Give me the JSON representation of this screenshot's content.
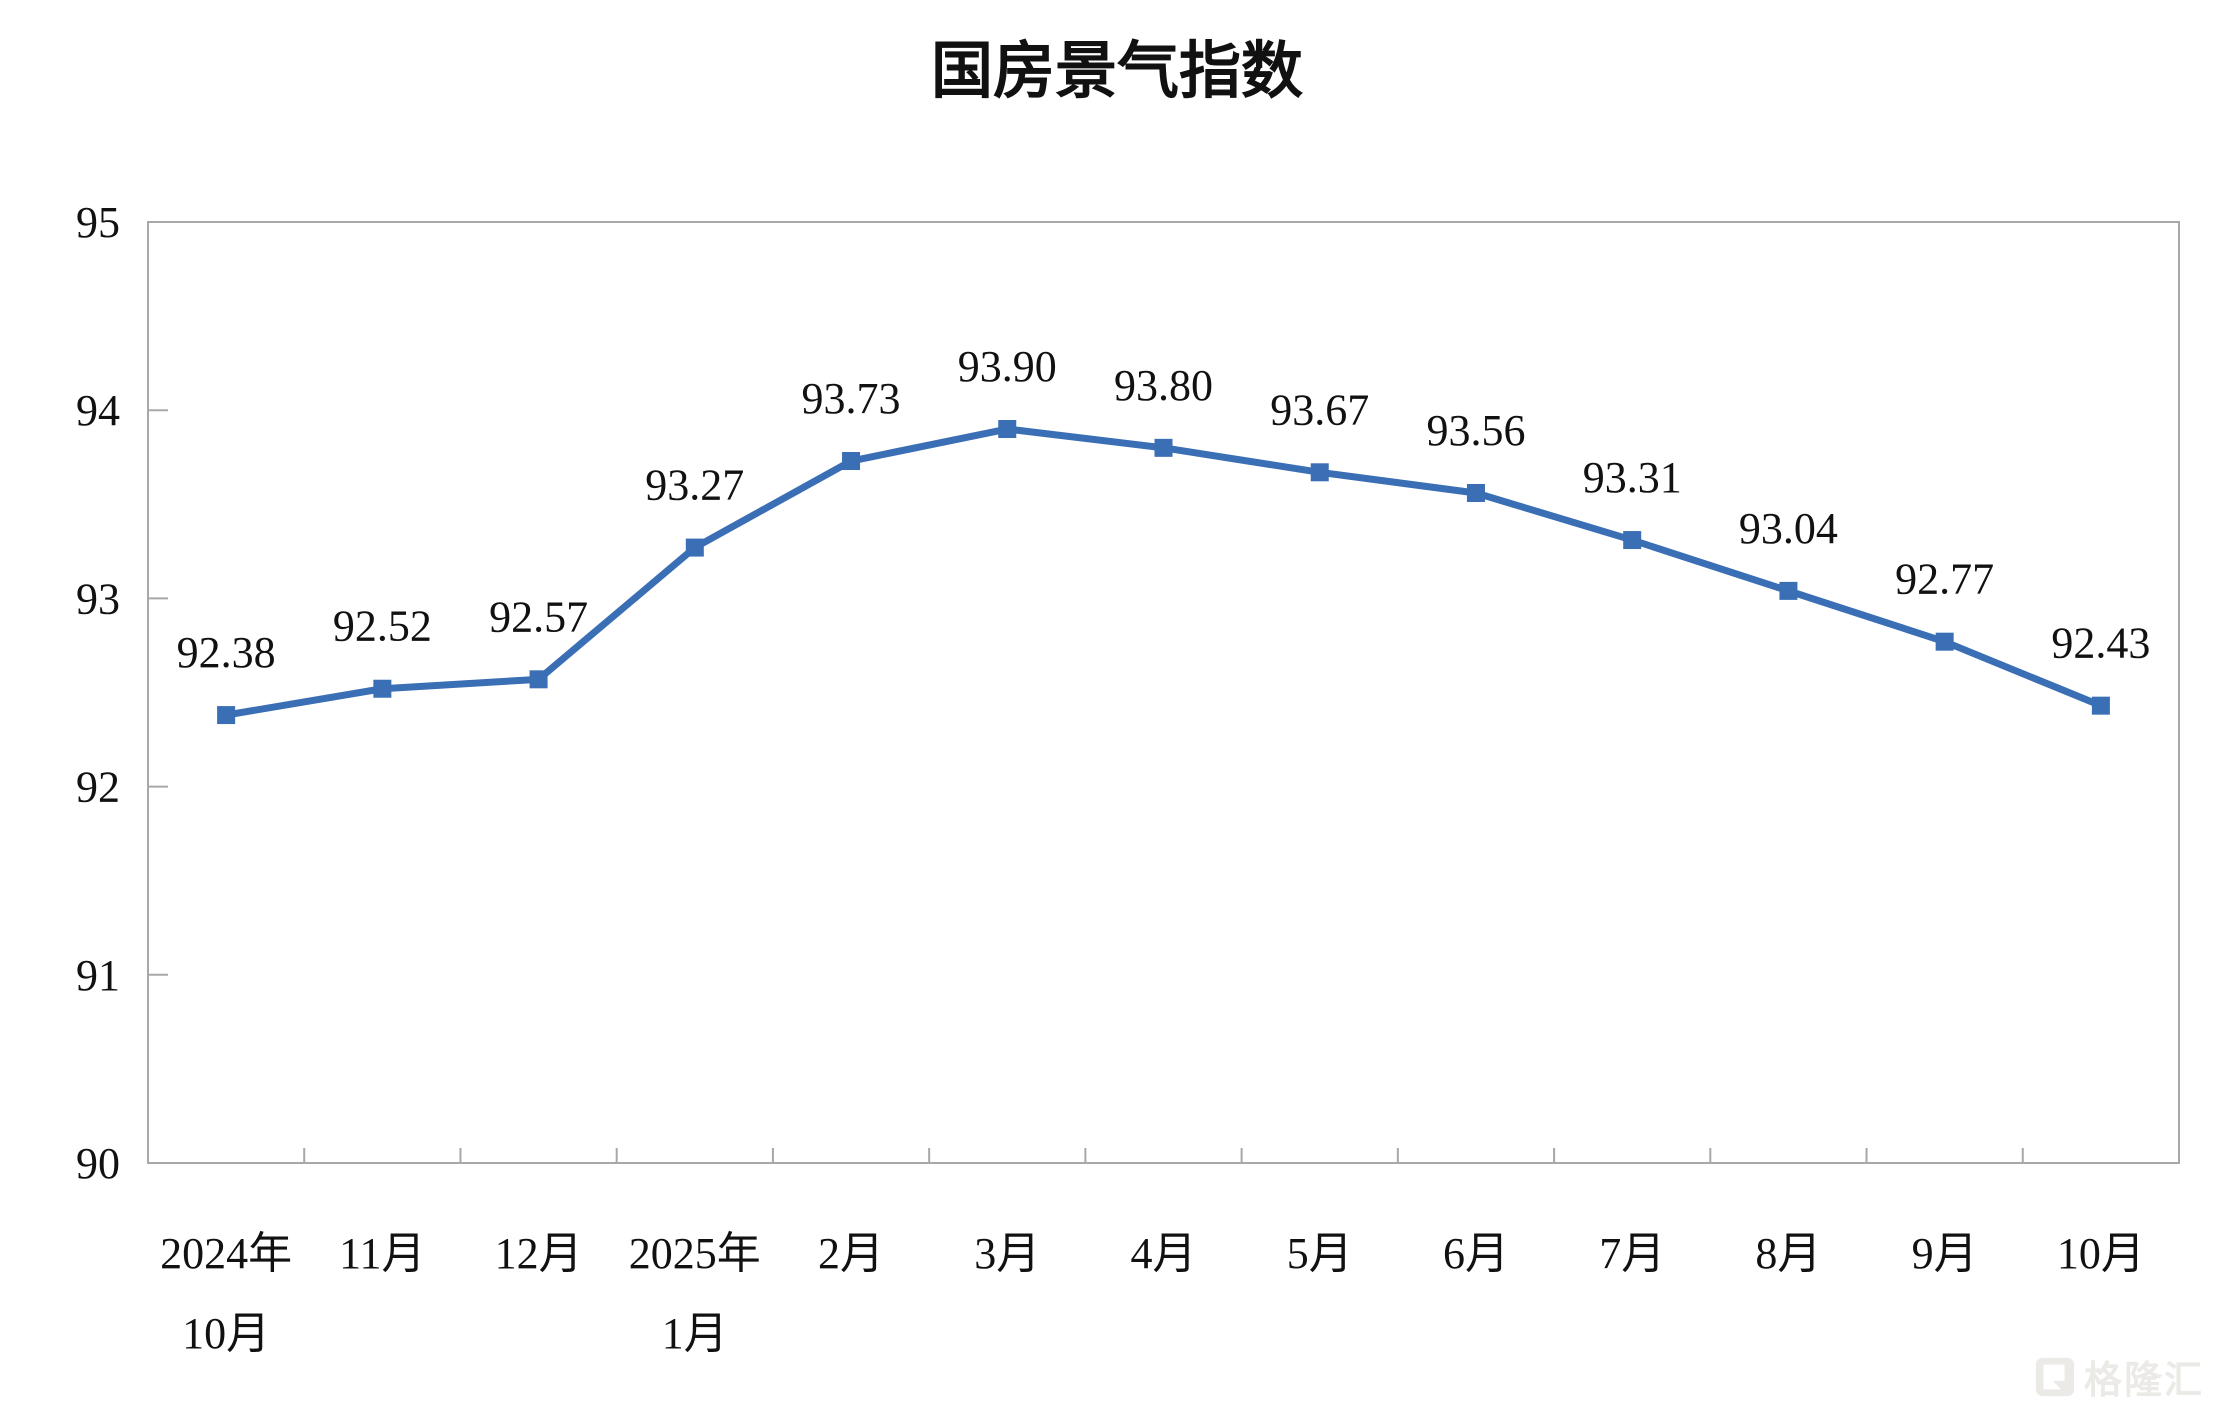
{
  "page": {
    "background": "#ffffff"
  },
  "chart_data": {
    "type": "line",
    "title": "国房景气指数",
    "categories": [
      "2024年\n10月",
      "11月",
      "12月",
      "2025年\n1月",
      "2月",
      "3月",
      "4月",
      "5月",
      "6月",
      "7月",
      "8月",
      "9月",
      "10月"
    ],
    "values": [
      92.38,
      92.52,
      92.57,
      93.27,
      93.73,
      93.9,
      93.8,
      93.67,
      93.56,
      93.31,
      93.04,
      92.77,
      92.43
    ],
    "data_labels": [
      "92.38",
      "92.52",
      "92.57",
      "93.27",
      "93.73",
      "93.90",
      "93.80",
      "93.67",
      "93.56",
      "93.31",
      "93.04",
      "92.77",
      "92.43"
    ],
    "xlabel": "",
    "ylabel": "",
    "ylim": [
      90,
      95
    ],
    "yticks": [
      "90",
      "91",
      "92",
      "93",
      "94",
      "95"
    ],
    "grid": false,
    "legend": "none",
    "line_color": "#3A6EB5",
    "marker": "square",
    "axis_color": "#A8A8A8",
    "label_color": "#111111"
  },
  "watermark": {
    "text": "格隆汇"
  }
}
